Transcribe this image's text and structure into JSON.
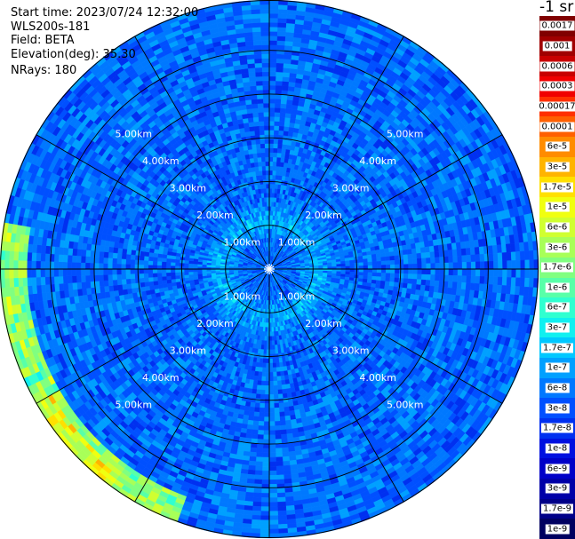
{
  "header": {
    "start_time": "Start time: 2023/07/24 12:32:00",
    "instrument": "WLS200s-181",
    "field": "Field: BETA",
    "elevation": "Elevation(deg): 35.30",
    "nrays": "NRays: 180"
  },
  "colorbar": {
    "unit_label": "-1 sr",
    "labels": [
      "0.0017",
      "0.001",
      "0.0006",
      "0.0003",
      "0.00017",
      "0.0001",
      "6e-5",
      "3e-5",
      "1.7e-5",
      "1e-5",
      "6e-6",
      "3e-6",
      "1.7e-6",
      "1e-6",
      "6e-7",
      "3e-7",
      "1.7e-7",
      "1e-7",
      "6e-8",
      "3e-8",
      "1.7e-8",
      "1e-8",
      "6e-9",
      "3e-9",
      "1.7e-9",
      "1e-9"
    ],
    "colors": [
      "#800000",
      "#a00000",
      "#c80000",
      "#f00000",
      "#ff3000",
      "#ff6000",
      "#ff8c00",
      "#ffb400",
      "#ffe000",
      "#f0ff10",
      "#d0ff30",
      "#a8ff58",
      "#80ff80",
      "#58ffa8",
      "#30ffd0",
      "#10f0f0",
      "#00c8ff",
      "#00a0ff",
      "#0078ff",
      "#0050ff",
      "#0030f0",
      "#0010e0",
      "#0000c8",
      "#0000a8",
      "#000088",
      "#000060"
    ]
  },
  "chart_data": {
    "type": "heatmap",
    "projection": "polar PPI (plan position indicator)",
    "rays": 180,
    "range_rings_km": [
      1.0,
      2.0,
      3.0,
      4.0,
      5.0
    ],
    "ring_labels": [
      "1.00km",
      "2.00km",
      "3.00km",
      "4.00km",
      "5.00km"
    ],
    "azimuth_spokes_deg": [
      0,
      30,
      60,
      90,
      120,
      150,
      180,
      210,
      240,
      270,
      300,
      330
    ],
    "max_range_km": 6.15,
    "colorscale": "log",
    "value_range": [
      1e-09,
      0.0017
    ],
    "description_levels": {
      "typical_background_log10": -7.3,
      "near_center_ring_log10": -6.8,
      "edge_high_westsouthwest_log10": -5.0
    }
  }
}
